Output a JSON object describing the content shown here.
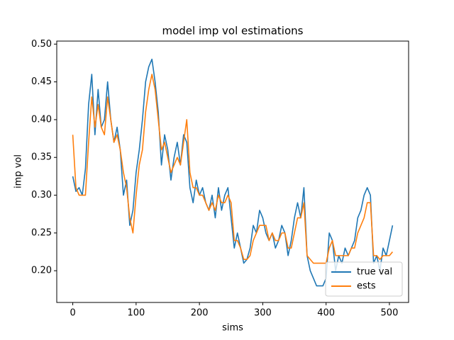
{
  "chart_data": {
    "type": "line",
    "title": "model imp vol estimations",
    "x_label": "sims",
    "y_label": "imp vol",
    "x": [
      0,
      5,
      10,
      15,
      20,
      25,
      30,
      35,
      40,
      45,
      50,
      55,
      60,
      65,
      70,
      75,
      80,
      85,
      90,
      95,
      100,
      105,
      110,
      115,
      120,
      125,
      130,
      135,
      140,
      145,
      150,
      155,
      160,
      165,
      170,
      175,
      180,
      185,
      190,
      195,
      200,
      205,
      210,
      215,
      220,
      225,
      230,
      235,
      240,
      245,
      250,
      255,
      260,
      265,
      270,
      275,
      280,
      285,
      290,
      295,
      300,
      305,
      310,
      315,
      320,
      325,
      330,
      335,
      340,
      345,
      350,
      355,
      360,
      365,
      370,
      375,
      380,
      385,
      390,
      395,
      400,
      405,
      410,
      415,
      420,
      425,
      430,
      435,
      440,
      445,
      450,
      455,
      460,
      465,
      470,
      475,
      480,
      485,
      490,
      495,
      500,
      505
    ],
    "series": [
      {
        "name": "true val",
        "color": "#1f77b4",
        "values": [
          0.325,
          0.305,
          0.31,
          0.3,
          0.335,
          0.42,
          0.46,
          0.38,
          0.44,
          0.39,
          0.4,
          0.45,
          0.4,
          0.37,
          0.39,
          0.36,
          0.3,
          0.32,
          0.26,
          0.28,
          0.33,
          0.36,
          0.4,
          0.45,
          0.47,
          0.48,
          0.45,
          0.41,
          0.34,
          0.38,
          0.36,
          0.32,
          0.35,
          0.37,
          0.34,
          0.38,
          0.37,
          0.31,
          0.29,
          0.32,
          0.3,
          0.31,
          0.29,
          0.28,
          0.3,
          0.27,
          0.31,
          0.28,
          0.3,
          0.31,
          0.27,
          0.23,
          0.25,
          0.23,
          0.21,
          0.215,
          0.23,
          0.26,
          0.25,
          0.28,
          0.27,
          0.25,
          0.24,
          0.25,
          0.23,
          0.24,
          0.26,
          0.25,
          0.22,
          0.24,
          0.27,
          0.29,
          0.27,
          0.31,
          0.22,
          0.2,
          0.19,
          0.18,
          0.18,
          0.18,
          0.19,
          0.25,
          0.24,
          0.2,
          0.22,
          0.21,
          0.23,
          0.22,
          0.23,
          0.24,
          0.27,
          0.28,
          0.3,
          0.31,
          0.3,
          0.21,
          0.22,
          0.2,
          0.23,
          0.22,
          0.24,
          0.26
        ]
      },
      {
        "name": "ests",
        "color": "#ff7f0e",
        "values": [
          0.38,
          0.31,
          0.3,
          0.3,
          0.3,
          0.37,
          0.43,
          0.39,
          0.42,
          0.39,
          0.38,
          0.43,
          0.4,
          0.37,
          0.38,
          0.36,
          0.33,
          0.31,
          0.27,
          0.25,
          0.3,
          0.34,
          0.36,
          0.41,
          0.44,
          0.46,
          0.44,
          0.4,
          0.36,
          0.37,
          0.35,
          0.33,
          0.34,
          0.35,
          0.34,
          0.37,
          0.4,
          0.33,
          0.31,
          0.31,
          0.3,
          0.3,
          0.29,
          0.28,
          0.29,
          0.28,
          0.3,
          0.29,
          0.29,
          0.3,
          0.29,
          0.24,
          0.24,
          0.23,
          0.215,
          0.215,
          0.22,
          0.24,
          0.25,
          0.26,
          0.26,
          0.26,
          0.24,
          0.25,
          0.24,
          0.24,
          0.25,
          0.25,
          0.23,
          0.23,
          0.25,
          0.27,
          0.27,
          0.29,
          0.22,
          0.215,
          0.21,
          0.21,
          0.21,
          0.21,
          0.21,
          0.23,
          0.24,
          0.22,
          0.22,
          0.22,
          0.22,
          0.22,
          0.23,
          0.23,
          0.25,
          0.26,
          0.27,
          0.29,
          0.29,
          0.22,
          0.22,
          0.215,
          0.22,
          0.22,
          0.22,
          0.225
        ]
      }
    ],
    "xlim": [
      -25.3,
      530.3
    ],
    "ylim": [
      0.158,
      0.504
    ],
    "xticks": [
      0,
      100,
      200,
      300,
      400,
      500
    ],
    "yticks": [
      {
        "value": 0.2,
        "label": "0.20"
      },
      0.25,
      {
        "value": 0.3,
        "label": "0.30"
      },
      0.35,
      {
        "value": 0.4,
        "label": "0.40"
      },
      0.45,
      {
        "value": 0.5,
        "label": "0.50"
      }
    ],
    "legend": "lower right"
  }
}
